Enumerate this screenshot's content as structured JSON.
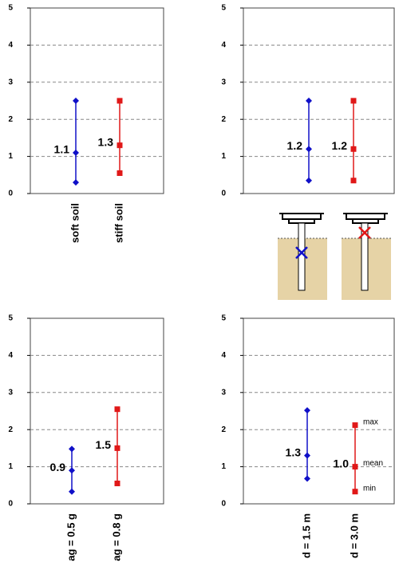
{
  "chart_data": [
    {
      "type": "range",
      "categories": [
        "soft soil",
        "stiff soil"
      ],
      "colors": [
        "#1010c8",
        "#e01818"
      ],
      "min": [
        0.3,
        0.55
      ],
      "values": [
        1.1,
        1.3
      ],
      "max": [
        2.5,
        2.5
      ],
      "value_labels": [
        "1.1",
        "1.3"
      ],
      "ylim": [
        0,
        5
      ],
      "yticks": [
        0,
        1,
        2,
        3,
        4,
        5
      ],
      "grid": true
    },
    {
      "type": "range",
      "categories": [
        null,
        null
      ],
      "colors": [
        "#1010c8",
        "#e01818"
      ],
      "min": [
        0.35,
        0.35
      ],
      "values": [
        1.2,
        1.2
      ],
      "max": [
        2.5,
        2.5
      ],
      "value_labels": [
        "1.2",
        "1.2"
      ],
      "ylim": [
        0,
        5
      ],
      "yticks": [
        0,
        1,
        2,
        3,
        4,
        5
      ],
      "grid": true
    },
    {
      "type": "range",
      "categories": [
        "ag = 0.5 g",
        "ag = 0.8 g"
      ],
      "colors": [
        "#1010c8",
        "#e01818"
      ],
      "min": [
        0.33,
        0.55
      ],
      "values": [
        0.9,
        1.5
      ],
      "max": [
        1.48,
        2.55
      ],
      "value_labels": [
        "0.9",
        "1.5"
      ],
      "ylim": [
        0,
        5
      ],
      "yticks": [
        0,
        1,
        2,
        3,
        4,
        5
      ],
      "grid": true
    },
    {
      "type": "range",
      "categories": [
        "d = 1.5 m",
        "d = 3.0 m"
      ],
      "colors": [
        "#1010c8",
        "#e01818"
      ],
      "min": [
        0.68,
        0.33
      ],
      "values": [
        1.3,
        1.0
      ],
      "max": [
        2.52,
        2.12
      ],
      "value_labels": [
        "1.3",
        "1.0"
      ],
      "annotations": [
        "max",
        "mean",
        "min"
      ],
      "ylim": [
        0,
        5
      ],
      "yticks": [
        0,
        1,
        2,
        3,
        4,
        5
      ],
      "grid": true
    }
  ]
}
